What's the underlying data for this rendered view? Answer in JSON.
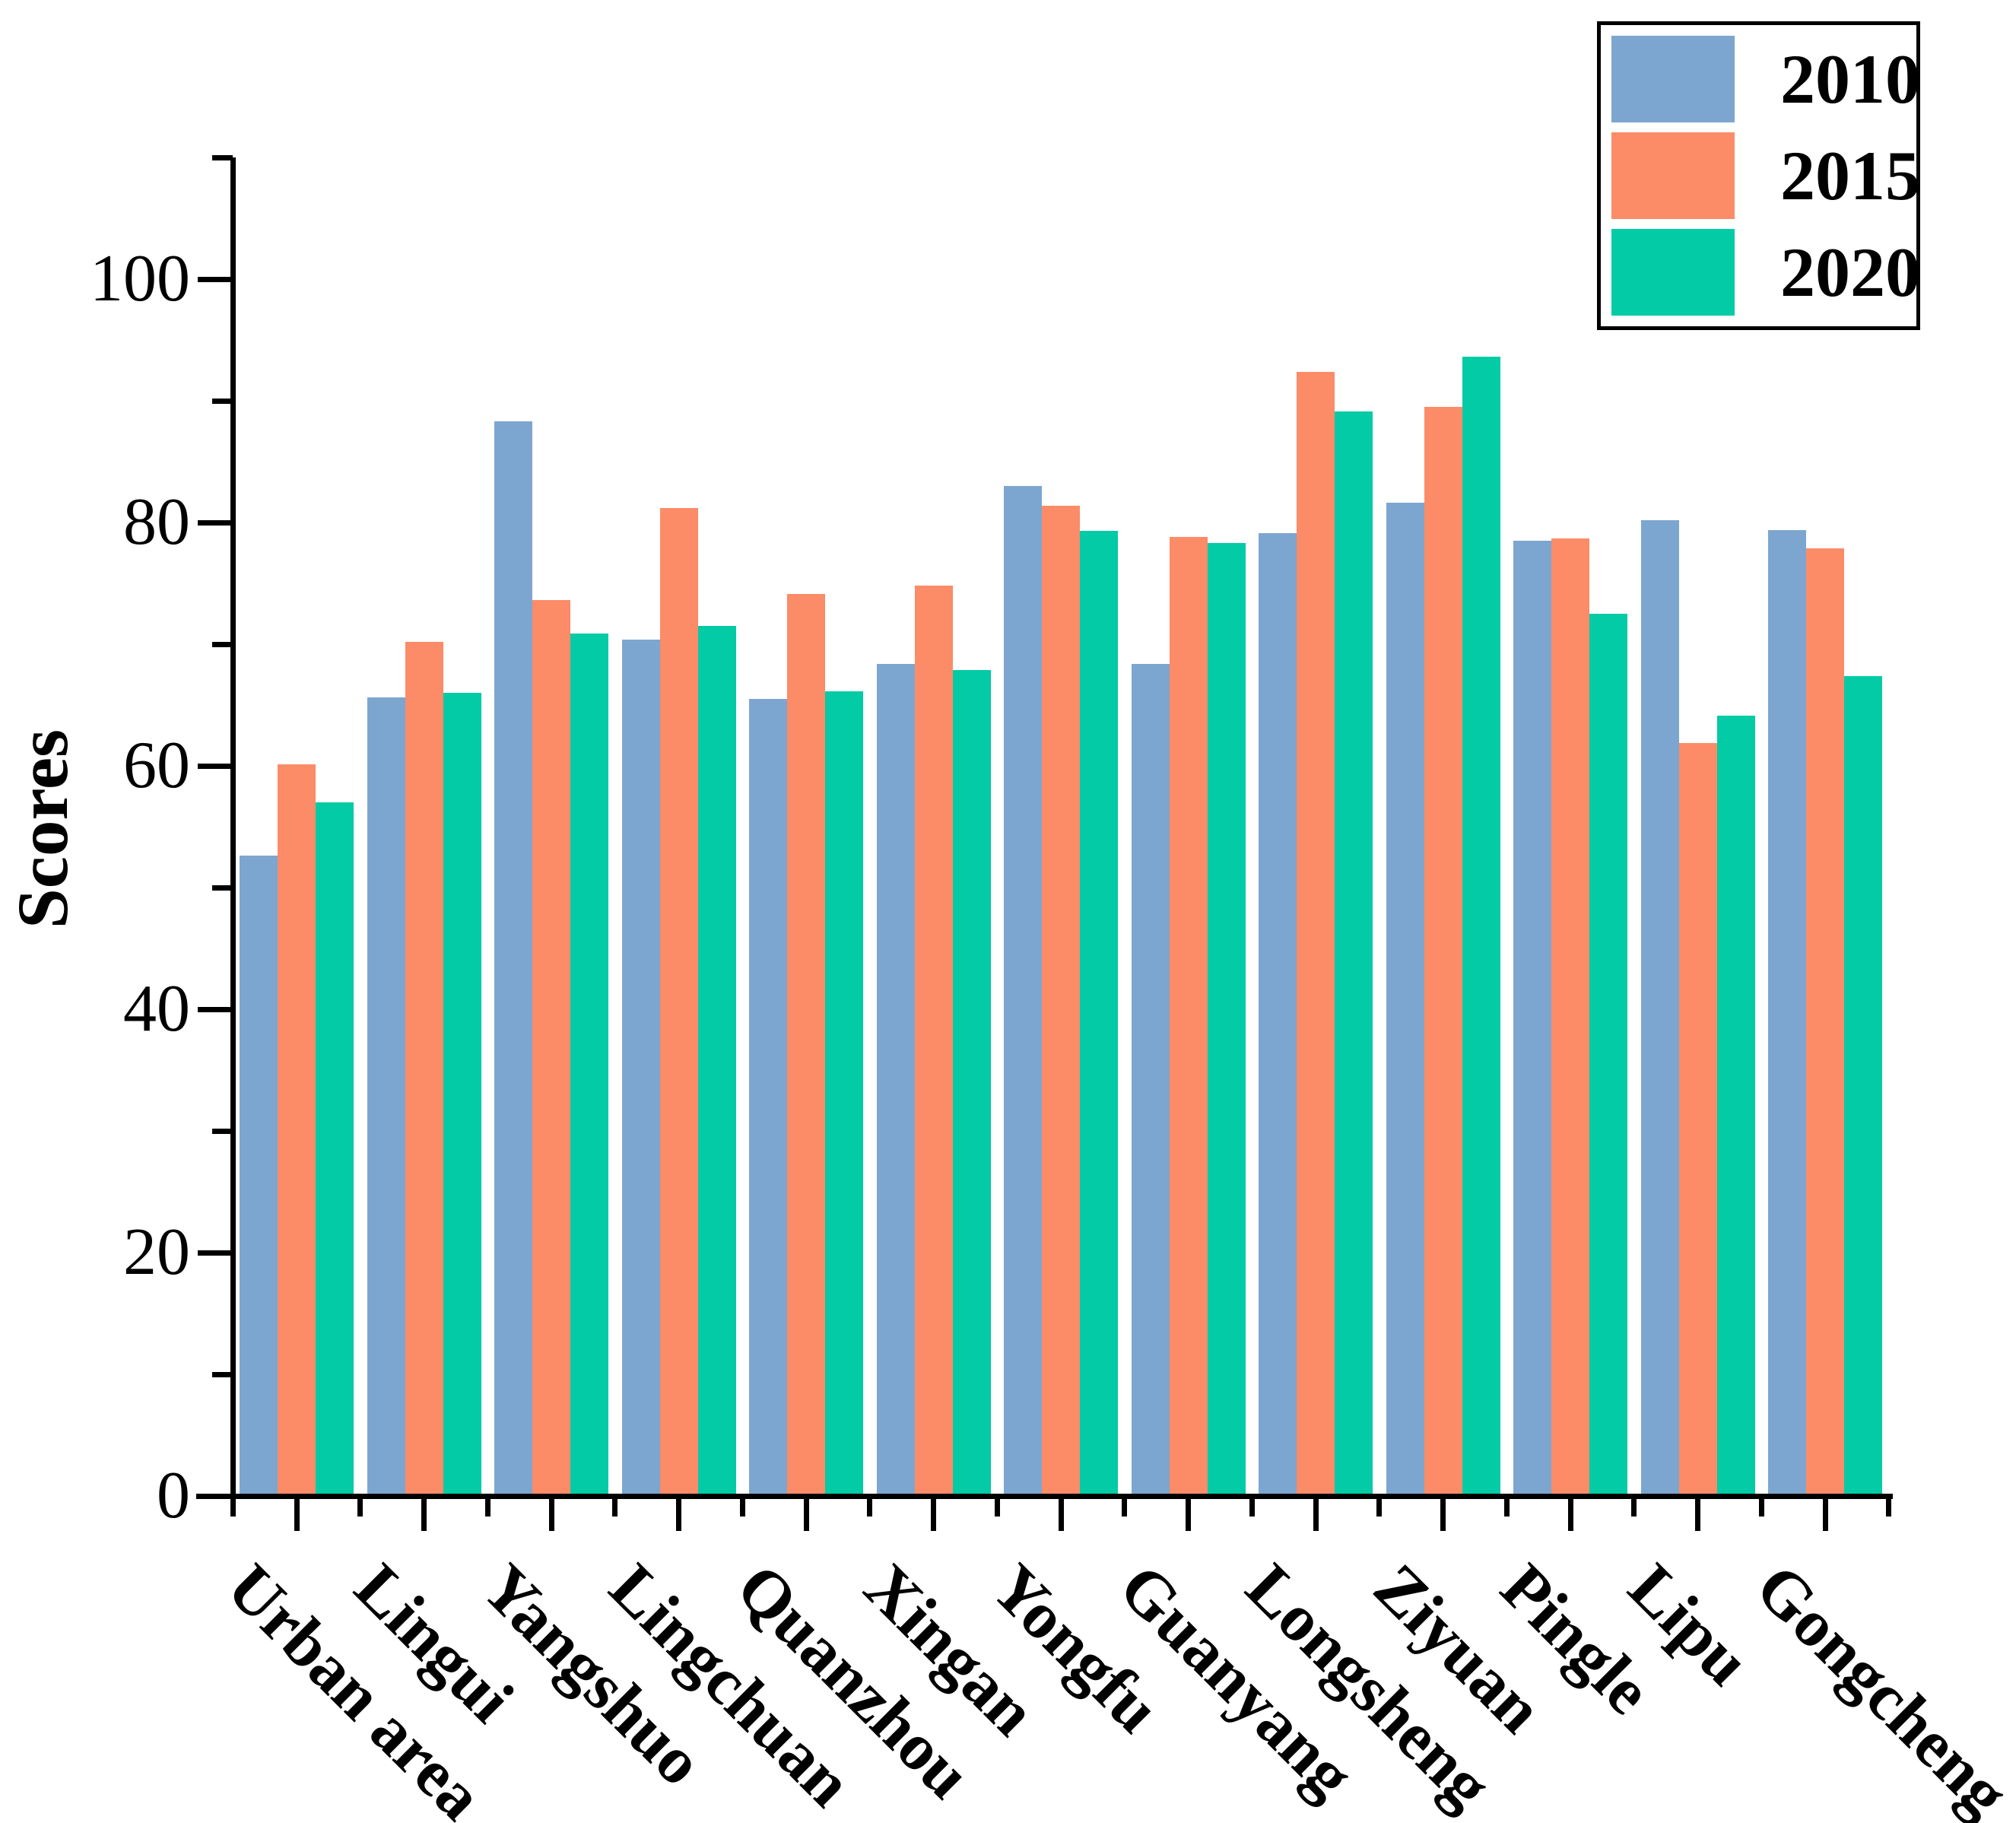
{
  "chart_data": {
    "type": "bar",
    "title": "",
    "xlabel": "",
    "ylabel": "Scores",
    "ylim": [
      0,
      110
    ],
    "yticks": [
      0,
      20,
      40,
      60,
      80,
      100
    ],
    "minor_tick_step": 10,
    "grid": false,
    "legend_position": "top-right",
    "axis_color": "#000000",
    "background_color": "#ffffff",
    "categories": [
      "Urban area",
      "Lingui",
      "Yangshuo",
      "Lingchuan",
      "Quanzhou",
      "Xingan",
      "Yongfu",
      "Guanyang",
      "Longsheng",
      "Ziyuan",
      "Pingle",
      "Lipu",
      "Gongcheng"
    ],
    "series": [
      {
        "name": "2010",
        "color": "#7CA6CF",
        "values": [
          52.6,
          65.6,
          88.3,
          70.4,
          65.5,
          68.4,
          83.0,
          68.4,
          79.1,
          81.6,
          78.5,
          80.2,
          79.4
        ]
      },
      {
        "name": "2015",
        "color": "#FC8B68",
        "values": [
          60.1,
          70.2,
          73.6,
          81.2,
          74.1,
          74.8,
          81.4,
          78.8,
          92.4,
          89.5,
          78.7,
          61.9,
          77.9
        ]
      },
      {
        "name": "2020",
        "color": "#03CBA6",
        "values": [
          57.0,
          66.0,
          70.9,
          71.5,
          66.1,
          67.9,
          79.3,
          78.3,
          89.1,
          93.6,
          72.5,
          64.1,
          67.4
        ]
      }
    ]
  }
}
